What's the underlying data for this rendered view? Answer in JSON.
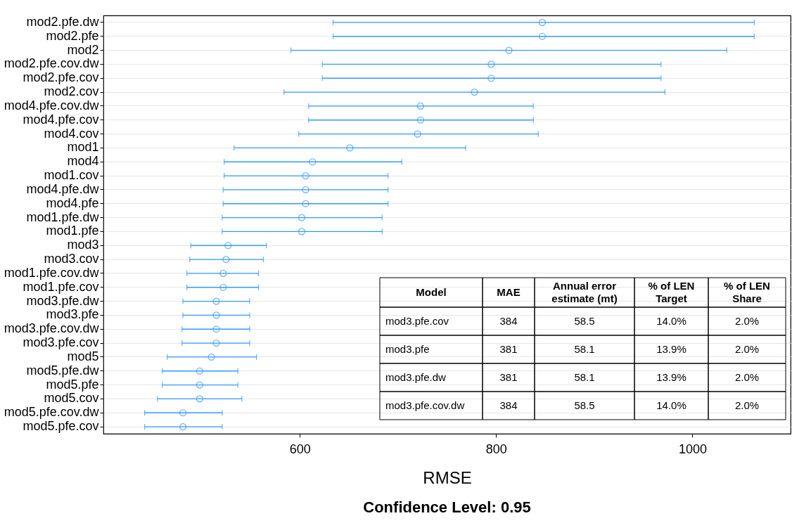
{
  "chart_data": {
    "type": "scatter",
    "orientation": "horizontal",
    "title": "Confidence Level: 0.95",
    "xlabel": "RMSE",
    "categories": [
      "mod2.pfe.dw",
      "mod2.pfe",
      "mod2",
      "mod2.pfe.cov.dw",
      "mod2.pfe.cov",
      "mod2.cov",
      "mod4.pfe.cov.dw",
      "mod4.pfe.cov",
      "mod4.cov",
      "mod1",
      "mod4",
      "mod1.cov",
      "mod4.pfe.dw",
      "mod4.pfe",
      "mod1.pfe.dw",
      "mod1.pfe",
      "mod3",
      "mod3.cov",
      "mod1.pfe.cov.dw",
      "mod1.pfe.cov",
      "mod3.pfe.dw",
      "mod3.pfe",
      "mod3.pfe.cov.dw",
      "mod3.pfe.cov",
      "mod5",
      "mod5.pfe.dw",
      "mod5.pfe",
      "mod5.cov",
      "mod5.pfe.cov.dw",
      "mod5.pfe.cov"
    ],
    "series": [
      {
        "color": "#3399ff",
        "values": [
          847,
          847,
          813,
          795,
          795,
          778,
          723,
          723,
          720,
          651,
          613,
          606,
          606,
          606,
          602,
          602,
          527,
          525,
          522,
          522,
          515,
          515,
          515,
          515,
          510,
          498,
          498,
          498,
          481,
          481
        ],
        "errors": [
          [
            634,
            1063
          ],
          [
            634,
            1063
          ],
          [
            591,
            1035
          ],
          [
            623,
            968
          ],
          [
            623,
            968
          ],
          [
            584,
            972
          ],
          [
            609,
            838
          ],
          [
            609,
            838
          ],
          [
            599,
            843
          ],
          [
            533,
            769
          ],
          [
            523,
            704
          ],
          [
            523,
            690
          ],
          [
            522,
            690
          ],
          [
            522,
            690
          ],
          [
            521,
            684
          ],
          [
            521,
            684
          ],
          [
            489,
            566
          ],
          [
            488,
            563
          ],
          [
            485,
            558
          ],
          [
            485,
            558
          ],
          [
            481,
            549
          ],
          [
            481,
            549
          ],
          [
            480,
            549
          ],
          [
            480,
            549
          ],
          [
            465,
            556
          ],
          [
            460,
            537
          ],
          [
            460,
            537
          ],
          [
            455,
            541
          ],
          [
            442,
            521
          ],
          [
            442,
            521
          ]
        ]
      }
    ],
    "xlim": [
      400,
      1100
    ],
    "xticks": [
      600,
      800,
      1000
    ],
    "grid": "y",
    "marker": "circle",
    "annotations": [
      "Model",
      "MAE",
      "Annual error\nestimate (mt)",
      "% of LEN\nTarget",
      "% of LEN\nShare",
      "mod3.pfe.cov",
      "384",
      "58.5",
      "14.0%",
      "2.0%",
      "mod3.pfe",
      "381",
      "58.1",
      "13.9%",
      "2.0%",
      "mod3.pfe.dw",
      "381",
      "58.1",
      "13.9%",
      "2.0%",
      "mod3.pfe.cov.dw",
      "384",
      "58.5",
      "14.0%",
      "2.0%"
    ]
  }
}
